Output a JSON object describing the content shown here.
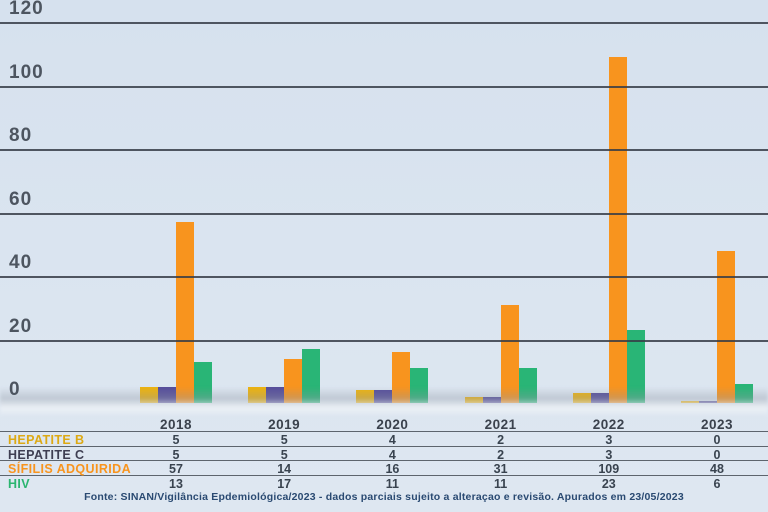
{
  "chart_data": {
    "type": "bar",
    "title": "",
    "xlabel": "",
    "ylabel": "",
    "categories": [
      "2018",
      "2019",
      "2020",
      "2021",
      "2022",
      "2023"
    ],
    "series": [
      {
        "name": "HEPATITE B",
        "color": "#eeb30e",
        "label_color": "#dda914",
        "values": [
          5,
          5,
          4,
          2,
          3,
          0
        ]
      },
      {
        "name": "HEPATITE C",
        "color": "#564d9b",
        "label_color": "#3e3e52",
        "values": [
          5,
          5,
          4,
          2,
          3,
          0
        ]
      },
      {
        "name": "SÍFILIS ADQUIRIDA",
        "color": "#f8941e",
        "label_color": "#f8941e",
        "values": [
          57,
          14,
          16,
          31,
          109,
          48
        ]
      },
      {
        "name": "HIV",
        "color": "#29b576",
        "label_color": "#2bb570",
        "values": [
          13,
          17,
          11,
          11,
          23,
          6
        ]
      }
    ],
    "ylim": [
      0,
      120
    ],
    "y_ticks": [
      0,
      20,
      40,
      60,
      80,
      100,
      120
    ],
    "grid": true,
    "gridlines_over_bars": true,
    "legend_position": "table-row-labels-left"
  },
  "footer": {
    "source_text": "Fonte: SINAN/Vigilância Epdemiológica/2023 - dados parciais sujeito a alteraçao e revisão. Apurados em 23/05/2023"
  },
  "style": {
    "background": "#dbe5f0",
    "gridline_color": "#363c46",
    "tick_label_color": "#4d5560",
    "year_label_color": "#3b424d",
    "value_text_color": "#39434f",
    "divider_color": "#464c56",
    "footer_color": "#2a4a72"
  }
}
